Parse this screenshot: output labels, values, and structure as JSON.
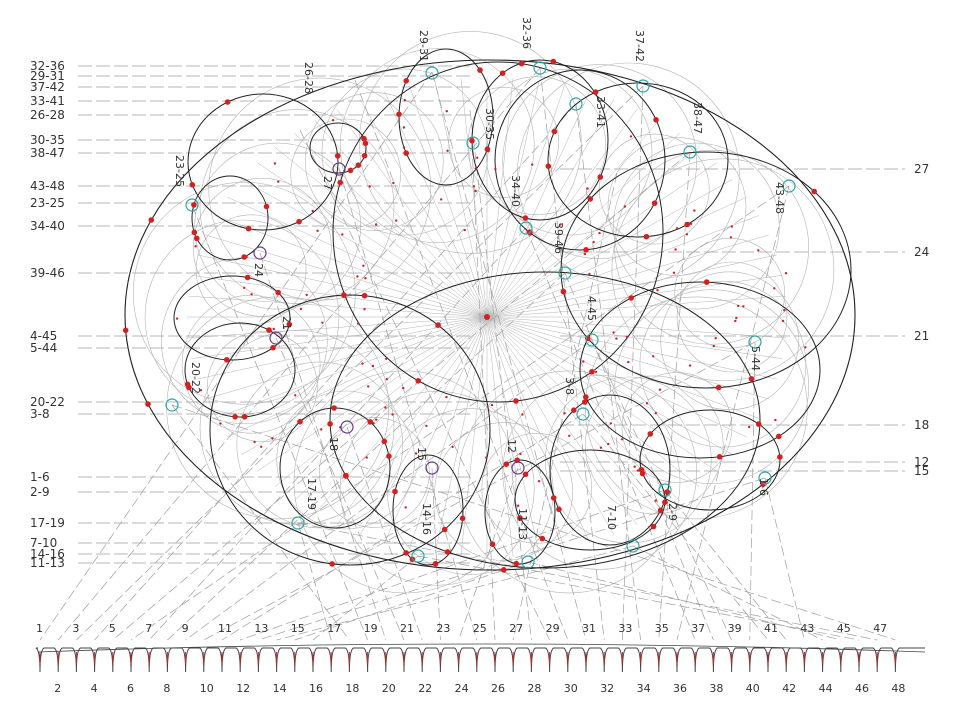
{
  "colors": {
    "background": "#ffffff",
    "construction_line": "#b4b4b4",
    "dashed_line": "#a0a0a0",
    "main_circle": "#222222",
    "point": "#d42020",
    "intersection_a": "#2aa6a8",
    "intersection_b": "#6a3a8a",
    "profile": "#444444"
  },
  "left_labels": [
    "32-36",
    "29-31",
    "37-42",
    "33-41",
    "26-28",
    "30-35",
    "38-47",
    "43-48",
    "23-25",
    "34-40",
    "39-46",
    "4-45",
    "5-44",
    "20-22",
    "3-8",
    "1-6",
    "2-9",
    "17-19",
    "7-10",
    "14-16",
    "11-13"
  ],
  "right_labels": [
    "27",
    "24",
    "21",
    "18",
    "12",
    "15"
  ],
  "inner_labels": [
    "29-31",
    "32-36",
    "37-42",
    "26-28",
    "33-41",
    "30-35",
    "38-47",
    "27",
    "23-25",
    "34-40",
    "43-48",
    "24",
    "39-46",
    "21",
    "4-45",
    "5-44",
    "20-22",
    "3-8",
    "18",
    "15",
    "12",
    "1-6",
    "17-19",
    "14-16",
    "11-13",
    "7-10",
    "2-9"
  ],
  "bottom_labels": [
    "1",
    "2",
    "3",
    "4",
    "5",
    "6",
    "7",
    "8",
    "9",
    "10",
    "11",
    "12",
    "13",
    "14",
    "15",
    "16",
    "17",
    "18",
    "19",
    "20",
    "21",
    "22",
    "23",
    "24",
    "25",
    "26",
    "27",
    "28",
    "29",
    "30",
    "31",
    "32",
    "33",
    "34",
    "35",
    "36",
    "37",
    "38",
    "39",
    "40",
    "41",
    "42",
    "43",
    "44",
    "45",
    "46",
    "47",
    "48"
  ]
}
